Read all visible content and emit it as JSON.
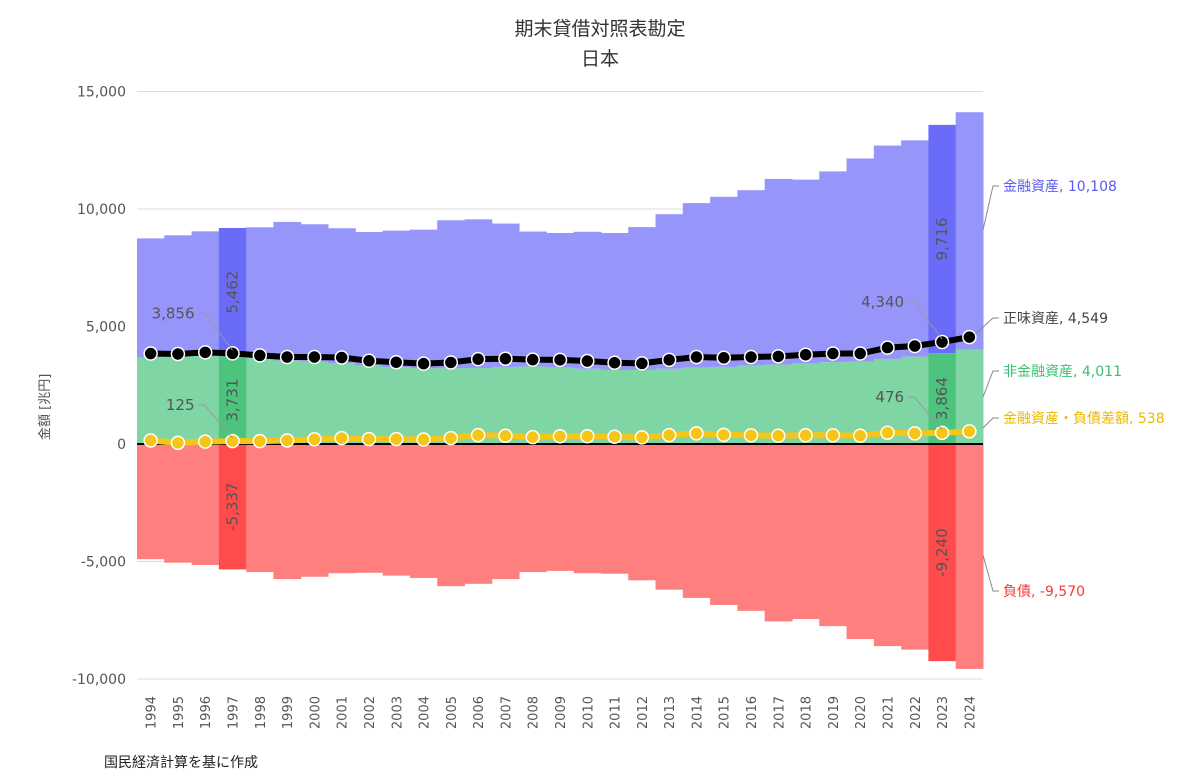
{
  "chart_data": {
    "type": "bar",
    "title": "期末貸借対照表勘定",
    "subtitle": "日本",
    "ylabel": "金額 [兆円]",
    "ylim": [
      -10000,
      15000
    ],
    "yticks": [
      15000,
      10000,
      5000,
      0,
      -5000,
      -10000
    ],
    "ytick_labels": [
      "15,000",
      "10,000",
      "5,000",
      "0",
      "-5,000",
      "-10,000"
    ],
    "grid": true,
    "stacked": true,
    "categories": [
      "1994",
      "1995",
      "1996",
      "1997",
      "1998",
      "1999",
      "2000",
      "2001",
      "2002",
      "2003",
      "2004",
      "2005",
      "2006",
      "2007",
      "2008",
      "2009",
      "2010",
      "2011",
      "2012",
      "2013",
      "2014",
      "2015",
      "2016",
      "2017",
      "2018",
      "2019",
      "2020",
      "2021",
      "2022",
      "2023",
      "2024"
    ],
    "highlighted_categories": [
      "1997",
      "2023"
    ],
    "series": [
      {
        "name": "非金融資産",
        "kind": "bar",
        "color": "#7fd6a4",
        "highlight_color": "#4cc47e",
        "values": [
          3700,
          3780,
          3800,
          3731,
          3650,
          3550,
          3500,
          3430,
          3330,
          3270,
          3230,
          3220,
          3230,
          3280,
          3300,
          3250,
          3200,
          3150,
          3150,
          3200,
          3250,
          3280,
          3330,
          3380,
          3430,
          3480,
          3500,
          3620,
          3720,
          3864,
          4011
        ],
        "end_label": "非金融資産, 4,011",
        "label_color": "#3bbf6e"
      },
      {
        "name": "金融資産",
        "kind": "bar",
        "color": "#9696fa",
        "highlight_color": "#6b6bfa",
        "values": [
          5050,
          5100,
          5250,
          5462,
          5570,
          5900,
          5850,
          5750,
          5690,
          5810,
          5890,
          6300,
          6330,
          6100,
          5740,
          5730,
          5830,
          5830,
          6080,
          6580,
          7000,
          7240,
          7470,
          7900,
          7820,
          8120,
          8650,
          9080,
          9200,
          9716,
          10108
        ],
        "end_label": "金融資産, 10,108",
        "label_color": "#5b5bee"
      },
      {
        "name": "負債",
        "kind": "bar",
        "color": "#ff7f7f",
        "highlight_color": "#ff4b4b",
        "values": [
          -4900,
          -5050,
          -5150,
          -5337,
          -5450,
          -5750,
          -5650,
          -5500,
          -5480,
          -5600,
          -5700,
          -6050,
          -5950,
          -5750,
          -5450,
          -5400,
          -5500,
          -5520,
          -5800,
          -6200,
          -6550,
          -6850,
          -7100,
          -7550,
          -7450,
          -7750,
          -8300,
          -8600,
          -8750,
          -9240,
          -9570
        ],
        "end_label": "負債, -9,570",
        "label_color": "#f03c3c"
      },
      {
        "name": "正味資産",
        "kind": "line",
        "color": "#000000",
        "values": [
          3850,
          3830,
          3900,
          3856,
          3770,
          3700,
          3700,
          3680,
          3540,
          3480,
          3420,
          3470,
          3610,
          3630,
          3590,
          3580,
          3530,
          3460,
          3430,
          3580,
          3700,
          3670,
          3700,
          3730,
          3800,
          3850,
          3850,
          4100,
          4170,
          4340,
          4549
        ],
        "end_label": "正味資産, 4,549",
        "label_color": "#444444"
      },
      {
        "name": "金融資産・負債差額",
        "kind": "line",
        "color": "#f5c518",
        "values": [
          150,
          50,
          100,
          125,
          120,
          150,
          200,
          250,
          210,
          210,
          190,
          250,
          380,
          350,
          290,
          330,
          330,
          310,
          280,
          380,
          450,
          390,
          370,
          350,
          370,
          370,
          350,
          480,
          450,
          476,
          538
        ],
        "end_label": "金融資産・負債差額, 538",
        "label_color": "#eab800"
      }
    ],
    "annotations": {
      "1997": {
        "net_worth": "3,856",
        "net_financial": "125",
        "financial": "5,462",
        "nonfinancial": "3,731",
        "liabilities": "-5,337"
      },
      "2023": {
        "net_worth": "4,340",
        "net_financial": "476",
        "financial": "9,716",
        "nonfinancial": "3,864",
        "liabilities": "-9,240"
      }
    }
  },
  "source_note": "国民経済計算を基に作成"
}
